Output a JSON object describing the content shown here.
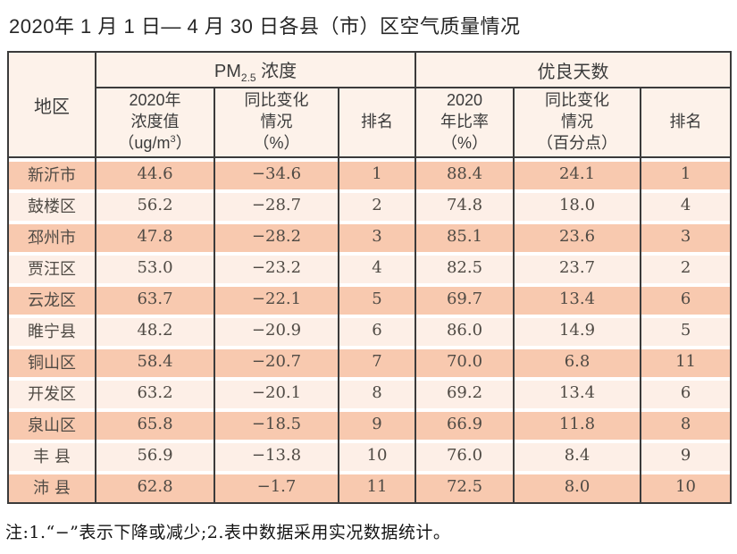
{
  "title": "2020年 1 月 1 日— 4 月 30 日各县（市）区空气质量情况",
  "note": "注:1.“−”表示下降或减少;2.表中数据采用实况数据统计。",
  "colors": {
    "row_odd": "#f8c9af",
    "row_even": "#fdefe7",
    "header_bg": "#fdf2ea",
    "grid_border": "#3b3b3b"
  },
  "table": {
    "region_header": "地区",
    "group_pm25": {
      "prefix": "PM",
      "subscript": "2.5",
      "suffix": " 浓度"
    },
    "group_good_days": "优良天数",
    "columns": {
      "pm_value": {
        "l1": "2020年",
        "l2": "浓度值",
        "l3_pre": "（ug/m",
        "l3_sup": "3",
        "l3_post": "）"
      },
      "pm_change": {
        "l1": "同比变化",
        "l2": "情况",
        "l3": "（%）"
      },
      "pm_rank": "排名",
      "rate": {
        "l1": "2020",
        "l2": "年比率",
        "l3": "（%）"
      },
      "rate_change": {
        "l1": "同比变化",
        "l2": "情况",
        "l3": "（百分点）"
      },
      "rate_rank": "排名"
    },
    "rows": [
      {
        "region": "新沂市",
        "pm_value": "44.6",
        "pm_change": "−34.6",
        "pm_rank": "1",
        "rate": "88.4",
        "rate_change": "24.1",
        "rate_rank": "1"
      },
      {
        "region": "鼓楼区",
        "pm_value": "56.2",
        "pm_change": "−28.7",
        "pm_rank": "2",
        "rate": "74.8",
        "rate_change": "18.0",
        "rate_rank": "4"
      },
      {
        "region": "邳州市",
        "pm_value": "47.8",
        "pm_change": "−28.2",
        "pm_rank": "3",
        "rate": "85.1",
        "rate_change": "23.6",
        "rate_rank": "3"
      },
      {
        "region": "贾汪区",
        "pm_value": "53.0",
        "pm_change": "−23.2",
        "pm_rank": "4",
        "rate": "82.5",
        "rate_change": "23.7",
        "rate_rank": "2"
      },
      {
        "region": "云龙区",
        "pm_value": "63.7",
        "pm_change": "−22.1",
        "pm_rank": "5",
        "rate": "69.7",
        "rate_change": "13.4",
        "rate_rank": "6"
      },
      {
        "region": "睢宁县",
        "pm_value": "48.2",
        "pm_change": "−20.9",
        "pm_rank": "6",
        "rate": "86.0",
        "rate_change": "14.9",
        "rate_rank": "5"
      },
      {
        "region": "铜山区",
        "pm_value": "58.4",
        "pm_change": "−20.7",
        "pm_rank": "7",
        "rate": "70.0",
        "rate_change": "6.8",
        "rate_rank": "11"
      },
      {
        "region": "开发区",
        "pm_value": "63.2",
        "pm_change": "−20.1",
        "pm_rank": "8",
        "rate": "69.2",
        "rate_change": "13.4",
        "rate_rank": "6"
      },
      {
        "region": "泉山区",
        "pm_value": "65.8",
        "pm_change": "−18.5",
        "pm_rank": "9",
        "rate": "66.9",
        "rate_change": "11.8",
        "rate_rank": "8"
      },
      {
        "region": "丰 县",
        "pm_value": "56.9",
        "pm_change": "−13.8",
        "pm_rank": "10",
        "rate": "76.0",
        "rate_change": "8.4",
        "rate_rank": "9"
      },
      {
        "region": "沛 县",
        "pm_value": "62.8",
        "pm_change": "−1.7",
        "pm_rank": "11",
        "rate": "72.5",
        "rate_change": "8.0",
        "rate_rank": "10"
      }
    ]
  }
}
